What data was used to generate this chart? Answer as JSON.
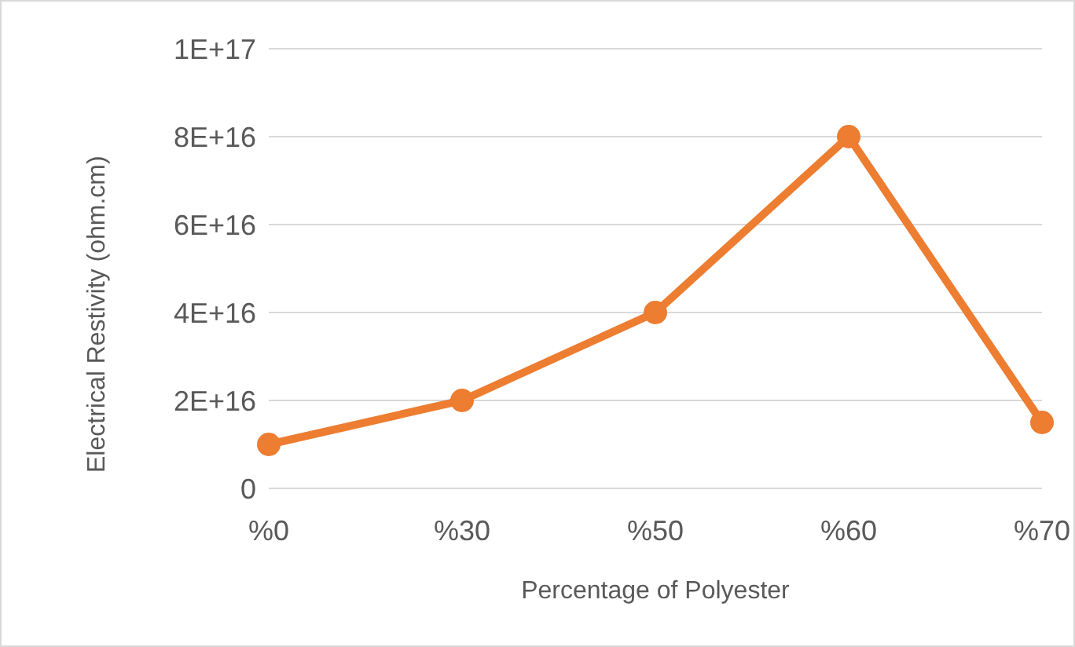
{
  "chart_data": {
    "type": "line",
    "xlabel": "Percentage of Polyester",
    "ylabel": "Electrical Restivity (ohm.cm)",
    "categories": [
      "%0",
      "%30",
      "%50",
      "%60",
      "%70"
    ],
    "series": [
      {
        "color": "#ed7d31",
        "values": [
          1e+16,
          2e+16,
          4e+16,
          8e+16,
          1.5e+16
        ]
      }
    ],
    "ylim": [
      0,
      1e+17
    ],
    "yticks": [
      {
        "value": 0,
        "label": "0"
      },
      {
        "value": 2e+16,
        "label": "2E+16"
      },
      {
        "value": 4e+16,
        "label": "4E+16"
      },
      {
        "value": 6e+16,
        "label": "6E+16"
      },
      {
        "value": 8e+16,
        "label": "8E+16"
      },
      {
        "value": 1e+17,
        "label": "1E+17"
      }
    ],
    "grid": "y",
    "marker": "circle",
    "legend": false
  }
}
